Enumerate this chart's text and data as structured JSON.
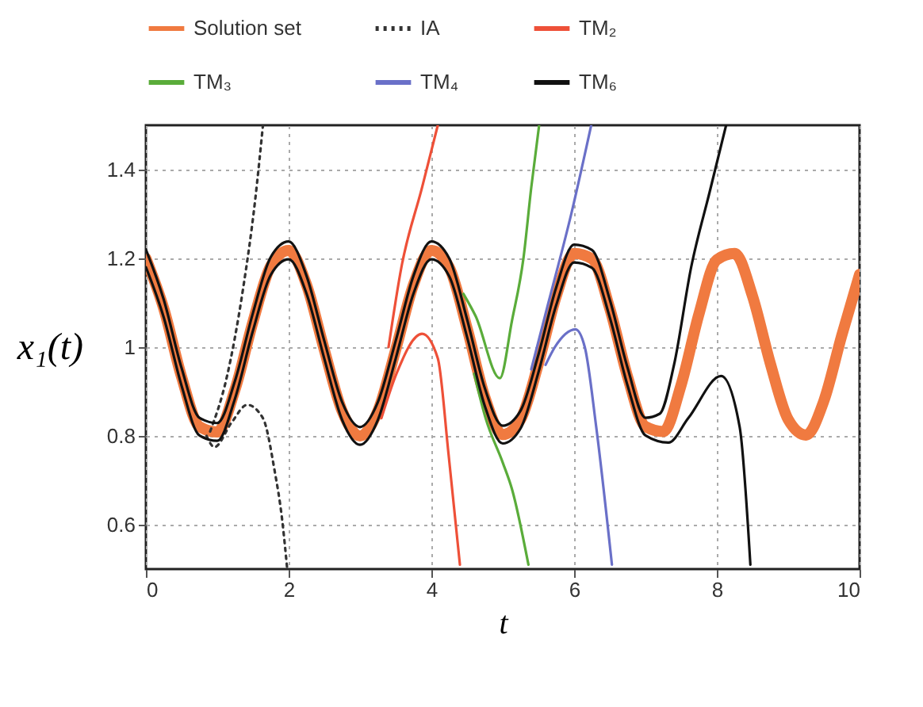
{
  "chart_data": {
    "type": "line",
    "xlabel": "t",
    "ylabel": "x₁(t)",
    "xlim": [
      0,
      10
    ],
    "ylim": [
      0.5,
      1.5
    ],
    "xticks": [
      0,
      2,
      4,
      6,
      8,
      10
    ],
    "yticks": [
      0.6,
      0.8,
      {
        "value": 1,
        "label": "1"
      },
      1.2,
      1.4
    ],
    "grid": true,
    "legend": "top",
    "series": [
      {
        "name": "Solution set",
        "color": "#f07a40",
        "x": [
          0,
          0.25,
          0.5,
          0.75,
          1,
          1.25,
          1.5,
          1.75,
          2,
          2.25,
          2.5,
          2.75,
          3,
          3.25,
          3.5,
          3.75,
          4,
          4.25,
          4.5,
          4.75,
          5,
          5.25,
          5.5,
          5.75,
          6,
          6.25,
          6.5,
          6.75,
          7,
          7.25,
          7.5,
          7.75,
          8,
          8.25,
          8.5,
          8.75,
          9,
          9.25,
          9.5,
          9.75,
          10
        ],
        "values": [
          1.2,
          1.087,
          0.933,
          0.821,
          0.809,
          0.905,
          1.057,
          1.183,
          1.218,
          1.141,
          0.994,
          0.856,
          0.8,
          0.856,
          0.994,
          1.141,
          1.218,
          1.18,
          1.043,
          0.887,
          0.803,
          0.837,
          0.963,
          1.115,
          1.211,
          1.199,
          1.087,
          0.933,
          0.821,
          0.81,
          0.915,
          1.075,
          1.197,
          1.211,
          1.115,
          0.963,
          0.837,
          0.802,
          0.879,
          1.026,
          1.164
        ]
      },
      {
        "name": "IA",
        "color": "#333333",
        "line_style": "dotted",
        "x": [
          0.9,
          1.13,
          1.36,
          1.53,
          1.64
        ],
        "values": [
          0.81,
          0.93,
          1.13,
          1.33,
          1.5
        ]
      },
      {
        "color": "#333333",
        "line_style": "dotted",
        "x": [
          0.85,
          0.96,
          1.2,
          1.42,
          1.64,
          1.8,
          1.91,
          1.98
        ],
        "values": [
          0.8,
          0.775,
          0.83,
          0.87,
          0.84,
          0.725,
          0.61,
          0.5
        ]
      },
      {
        "name": "TM₂",
        "color": "#ee5038",
        "x": [
          3.4,
          3.58,
          3.87,
          4.09
        ],
        "values": [
          1.0,
          1.18,
          1.36,
          1.5
        ]
      },
      {
        "color": "#ee5038",
        "x": [
          3.3,
          3.51,
          3.87,
          4.09,
          4.24,
          4.4
        ],
        "values": [
          0.84,
          0.94,
          1.03,
          0.975,
          0.76,
          0.51
        ]
      },
      {
        "name": "TM₃",
        "color": "#5aac3a",
        "x": [
          4.45,
          4.62,
          4.96,
          5.13,
          5.29,
          5.4,
          5.51
        ],
        "values": [
          1.12,
          1.07,
          0.93,
          1.06,
          1.2,
          1.36,
          1.5
        ]
      },
      {
        "color": "#5aac3a",
        "x": [
          4.6,
          4.76,
          5,
          5.13,
          5.36
        ],
        "values": [
          0.94,
          0.84,
          0.74,
          0.68,
          0.51
        ]
      },
      {
        "name": "TM₄",
        "color": "#6a70c8",
        "x": [
          5.4,
          5.64,
          5.96,
          6.24
        ],
        "values": [
          0.95,
          1.1,
          1.3,
          1.5
        ]
      },
      {
        "color": "#6a70c8",
        "x": [
          5.6,
          5.73,
          6.02,
          6.15,
          6.31,
          6.53
        ],
        "values": [
          0.96,
          1,
          1.04,
          1,
          0.82,
          0.51
        ]
      },
      {
        "name": "TM₆",
        "color": "#111111",
        "x": [
          0,
          0.25,
          0.5,
          0.75,
          1,
          1.25,
          1.5,
          1.75,
          2,
          2.25,
          2.5,
          2.75,
          3,
          3.25,
          3.5,
          3.75,
          4,
          4.25,
          4.5,
          4.75,
          5,
          5.25,
          5.5,
          5.75,
          6,
          6.25,
          6.5,
          6.75,
          7,
          7.2,
          7.4,
          7.64,
          7.9,
          8.13
        ],
        "values": [
          1.22,
          1.107,
          0.953,
          0.841,
          0.829,
          0.925,
          1.077,
          1.203,
          1.238,
          1.161,
          1.014,
          0.876,
          0.82,
          0.876,
          1.014,
          1.161,
          1.238,
          1.2,
          1.063,
          0.907,
          0.823,
          0.857,
          0.983,
          1.135,
          1.231,
          1.219,
          1.107,
          0.953,
          0.841,
          0.85,
          0.96,
          1.18,
          1.35,
          1.5
        ]
      },
      {
        "color": "#111111",
        "x": [
          0,
          0.25,
          0.5,
          0.75,
          1,
          1.25,
          1.5,
          1.75,
          2,
          2.25,
          2.5,
          2.75,
          3,
          3.25,
          3.5,
          3.75,
          4,
          4.25,
          4.5,
          4.75,
          5,
          5.25,
          5.5,
          5.75,
          6,
          6.25,
          6.5,
          6.75,
          7,
          7.32,
          7.6,
          8.06,
          8.32,
          8.47
        ],
        "values": [
          1.18,
          1.067,
          0.913,
          0.801,
          0.789,
          0.885,
          1.037,
          1.163,
          1.198,
          1.121,
          0.974,
          0.836,
          0.78,
          0.836,
          0.974,
          1.121,
          1.198,
          1.16,
          1.023,
          0.867,
          0.783,
          0.817,
          0.943,
          1.095,
          1.191,
          1.179,
          1.067,
          0.913,
          0.801,
          0.785,
          0.84,
          0.935,
          0.82,
          0.51
        ]
      }
    ]
  }
}
